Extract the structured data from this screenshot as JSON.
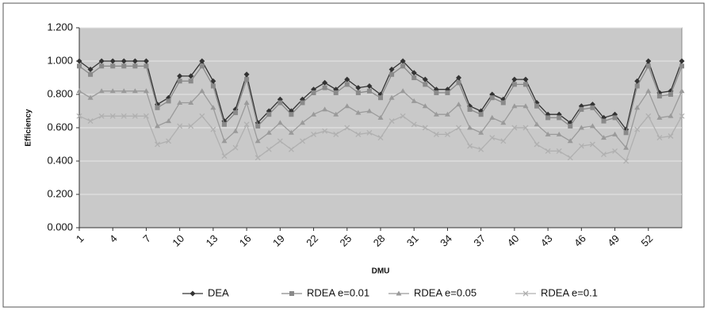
{
  "chart_data": {
    "type": "line",
    "x_label": "DMU",
    "y_label": "Efficiency",
    "categories": [
      "1",
      null,
      null,
      "4",
      null,
      null,
      "7",
      null,
      null,
      "10",
      null,
      null,
      "13",
      null,
      null,
      "16",
      null,
      null,
      "19",
      null,
      null,
      "22",
      null,
      null,
      "25",
      null,
      null,
      "28",
      null,
      null,
      "31",
      null,
      null,
      "34",
      null,
      null,
      "37",
      null,
      null,
      "40",
      null,
      null,
      "43",
      null,
      null,
      "46",
      null,
      null,
      "49",
      null,
      null,
      "52",
      null,
      null,
      null
    ],
    "series": [
      {
        "name": "DEA",
        "color": "#333333",
        "marker": "diamond",
        "values": [
          1.0,
          0.95,
          1.0,
          1.0,
          1.0,
          1.0,
          1.0,
          0.74,
          0.78,
          0.91,
          0.91,
          1.0,
          0.88,
          0.64,
          0.71,
          0.92,
          0.63,
          0.7,
          0.77,
          0.7,
          0.77,
          0.83,
          0.87,
          0.83,
          0.89,
          0.84,
          0.85,
          0.8,
          0.95,
          1.0,
          0.93,
          0.89,
          0.83,
          0.83,
          0.9,
          0.73,
          0.7,
          0.8,
          0.77,
          0.89,
          0.89,
          0.75,
          0.68,
          0.68,
          0.63,
          0.73,
          0.74,
          0.66,
          0.68,
          0.59,
          0.88,
          1.0,
          0.81,
          0.82,
          1.0
        ]
      },
      {
        "name": "RDEA e=0.01",
        "color": "#8a8a8a",
        "marker": "square",
        "values": [
          0.97,
          0.92,
          0.97,
          0.97,
          0.97,
          0.97,
          0.97,
          0.72,
          0.76,
          0.88,
          0.88,
          0.97,
          0.85,
          0.62,
          0.69,
          0.89,
          0.61,
          0.68,
          0.75,
          0.68,
          0.75,
          0.81,
          0.84,
          0.81,
          0.86,
          0.81,
          0.82,
          0.78,
          0.92,
          0.97,
          0.9,
          0.86,
          0.81,
          0.81,
          0.87,
          0.71,
          0.68,
          0.78,
          0.75,
          0.86,
          0.86,
          0.73,
          0.66,
          0.66,
          0.61,
          0.71,
          0.72,
          0.64,
          0.66,
          0.57,
          0.85,
          0.97,
          0.79,
          0.8,
          0.97
        ]
      },
      {
        "name": "RDEA e=0.05",
        "color": "#9a9a9a",
        "marker": "triangle",
        "values": [
          0.82,
          0.78,
          0.82,
          0.82,
          0.82,
          0.82,
          0.82,
          0.61,
          0.64,
          0.75,
          0.75,
          0.82,
          0.72,
          0.52,
          0.58,
          0.75,
          0.52,
          0.57,
          0.63,
          0.57,
          0.63,
          0.68,
          0.71,
          0.68,
          0.73,
          0.69,
          0.7,
          0.66,
          0.78,
          0.82,
          0.76,
          0.73,
          0.68,
          0.68,
          0.74,
          0.6,
          0.57,
          0.66,
          0.63,
          0.73,
          0.73,
          0.62,
          0.56,
          0.56,
          0.52,
          0.6,
          0.61,
          0.54,
          0.56,
          0.48,
          0.72,
          0.82,
          0.66,
          0.67,
          0.82
        ]
      },
      {
        "name": "RDEA e=0.1",
        "color": "#b0b0b0",
        "marker": "x",
        "values": [
          0.67,
          0.64,
          0.67,
          0.67,
          0.67,
          0.67,
          0.67,
          0.5,
          0.52,
          0.61,
          0.61,
          0.67,
          0.59,
          0.43,
          0.48,
          0.62,
          0.42,
          0.47,
          0.52,
          0.47,
          0.52,
          0.56,
          0.58,
          0.56,
          0.6,
          0.56,
          0.57,
          0.54,
          0.64,
          0.67,
          0.62,
          0.6,
          0.56,
          0.56,
          0.6,
          0.49,
          0.47,
          0.54,
          0.52,
          0.6,
          0.6,
          0.5,
          0.46,
          0.46,
          0.42,
          0.49,
          0.5,
          0.44,
          0.46,
          0.4,
          0.59,
          0.67,
          0.54,
          0.55,
          0.67
        ]
      }
    ],
    "ylim": [
      0,
      1.2
    ],
    "yticks": [
      {
        "value": 0,
        "label": "0.000"
      },
      {
        "value": 0.2,
        "label": "0.200"
      },
      {
        "value": 0.4,
        "label": "0.400"
      },
      {
        "value": 0.6,
        "label": "0.600"
      },
      {
        "value": 0.8,
        "label": "0.800"
      },
      {
        "value": 1.0,
        "label": "1.000"
      },
      {
        "value": 1.2,
        "label": "1.200"
      }
    ],
    "grid": true,
    "legend": "bottom"
  }
}
